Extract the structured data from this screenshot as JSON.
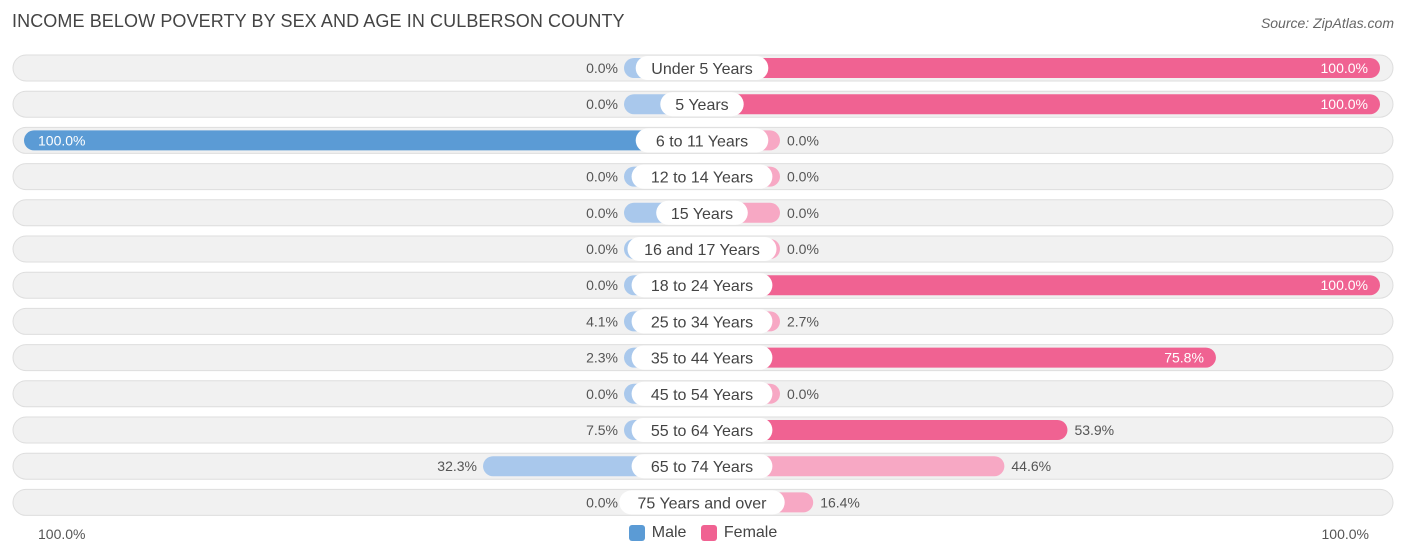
{
  "title": "INCOME BELOW POVERTY BY SEX AND AGE IN CULBERSON COUNTY",
  "source": "Source: ZipAtlas.com",
  "colors": {
    "male_strong": "#5b9bd5",
    "male_light": "#a9c8ec",
    "female_strong": "#f06292",
    "female_light": "#f7a8c4",
    "track": "#f1f1f1",
    "track_border": "#dedede"
  },
  "axis": {
    "left_label": "100.0%",
    "right_label": "100.0%"
  },
  "legend": {
    "male": "Male",
    "female": "Female"
  },
  "chart_data": {
    "type": "bar",
    "orientation": "horizontal-diverging",
    "xlim": [
      0,
      100
    ],
    "categories": [
      "Under 5 Years",
      "5 Years",
      "6 to 11 Years",
      "12 to 14 Years",
      "15 Years",
      "16 and 17 Years",
      "18 to 24 Years",
      "25 to 34 Years",
      "35 to 44 Years",
      "45 to 54 Years",
      "55 to 64 Years",
      "65 to 74 Years",
      "75 Years and over"
    ],
    "series": [
      {
        "name": "Male",
        "values": [
          0.0,
          0.0,
          100.0,
          0.0,
          0.0,
          0.0,
          0.0,
          4.1,
          2.3,
          0.0,
          7.5,
          32.3,
          0.0
        ],
        "labels": [
          "0.0%",
          "0.0%",
          "100.0%",
          "0.0%",
          "0.0%",
          "0.0%",
          "0.0%",
          "4.1%",
          "2.3%",
          "0.0%",
          "7.5%",
          "32.3%",
          "0.0%"
        ]
      },
      {
        "name": "Female",
        "values": [
          100.0,
          100.0,
          0.0,
          0.0,
          0.0,
          0.0,
          100.0,
          2.7,
          75.8,
          0.0,
          53.9,
          44.6,
          16.4
        ],
        "labels": [
          "100.0%",
          "100.0%",
          "0.0%",
          "0.0%",
          "0.0%",
          "0.0%",
          "100.0%",
          "2.7%",
          "75.8%",
          "0.0%",
          "53.9%",
          "44.6%",
          "16.4%"
        ]
      }
    ],
    "legend_position": "bottom-center"
  }
}
